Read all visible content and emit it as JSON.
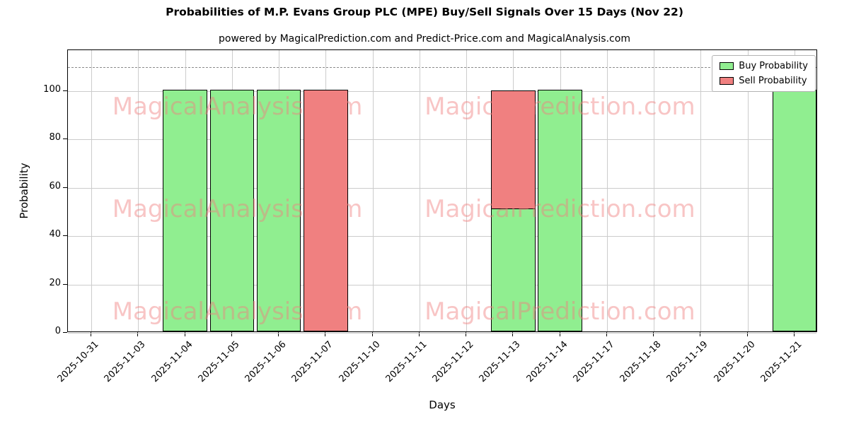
{
  "title": "Probabilities of M.P. Evans Group PLC (MPE) Buy/Sell Signals Over 15 Days (Nov 22)",
  "subtitle": "powered by MagicalPrediction.com and Predict-Price.com and MagicalAnalysis.com",
  "chart_data": {
    "type": "bar",
    "stacked": true,
    "title": "Probabilities of M.P. Evans Group PLC (MPE) Buy/Sell Signals Over 15 Days (Nov 22)",
    "xlabel": "Days",
    "ylabel": "Probability",
    "categories": [
      "2025-10-31",
      "2025-11-03",
      "2025-11-04",
      "2025-11-05",
      "2025-11-06",
      "2025-11-07",
      "2025-11-10",
      "2025-11-11",
      "2025-11-12",
      "2025-11-13",
      "2025-11-14",
      "2025-11-17",
      "2025-11-18",
      "2025-11-19",
      "2025-11-20",
      "2025-11-21"
    ],
    "series": [
      {
        "name": "Buy Probability",
        "color": "#90EE90",
        "values": [
          0,
          0,
          100,
          100,
          100,
          0,
          0,
          0,
          0,
          51,
          100,
          0,
          0,
          0,
          0,
          100
        ]
      },
      {
        "name": "Sell Probability",
        "color": "#F08080",
        "values": [
          0,
          0,
          0,
          0,
          0,
          100,
          0,
          0,
          0,
          49,
          0,
          0,
          0,
          0,
          0,
          0
        ]
      }
    ],
    "ylim": [
      0,
      117
    ],
    "yticks": [
      0,
      20,
      40,
      60,
      80,
      100
    ],
    "dashed_line_y": 110,
    "grid": true,
    "legend_position": "upper right",
    "watermarks": {
      "texts": [
        "MagicalAnalysis.com",
        "MagicalPrediction.com"
      ],
      "color": "#f08080",
      "opacity": 0.45,
      "rows": [
        0.2,
        0.5625,
        0.925
      ],
      "cols": [
        0.226,
        0.656
      ]
    }
  }
}
